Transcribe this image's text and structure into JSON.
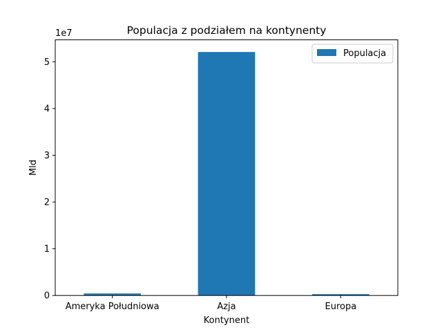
{
  "chart_data": {
    "type": "bar",
    "title": "Populacja z podziałem na kontynenty",
    "xlabel": "Kontynent",
    "ylabel": "Mld",
    "y_multiplier_label": "1e7",
    "y_scale": 10000000,
    "categories": [
      "Ameryka Południowa",
      "Azja",
      "Europa"
    ],
    "series": [
      {
        "name": "Populacja",
        "values": [
          430000,
          52100000,
          290000
        ]
      }
    ],
    "ylim": [
      0,
      54700000
    ],
    "yticks": [
      0,
      10000000,
      20000000,
      30000000,
      40000000,
      50000000
    ],
    "ytick_labels": [
      "0",
      "1",
      "2",
      "3",
      "4",
      "5"
    ],
    "grid": false,
    "legend_position": "top-right",
    "bar_color": "#1f77b4"
  }
}
